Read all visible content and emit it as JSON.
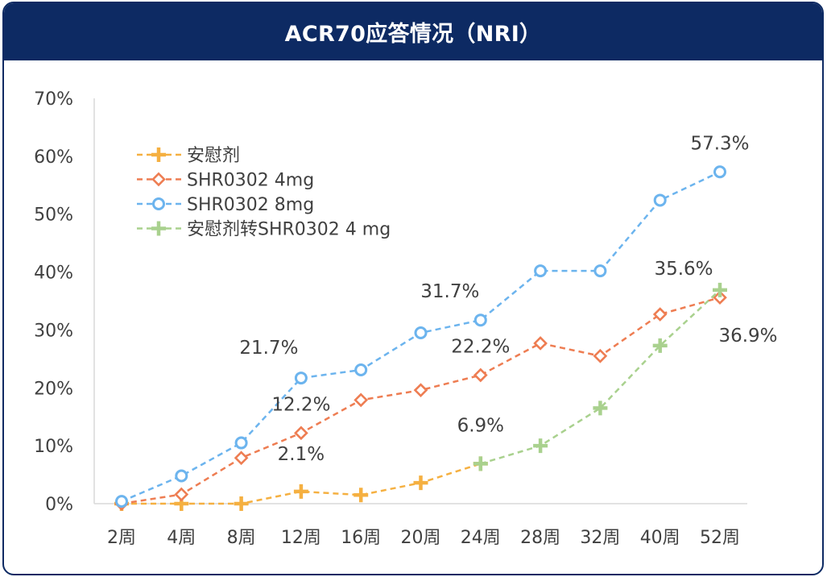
{
  "header": {
    "title": "ACR70应答情况（NRI）"
  },
  "chart_data": {
    "type": "line",
    "title": "ACR70应答情况（NRI）",
    "categories": [
      "2周",
      "4周",
      "8周",
      "12周",
      "16周",
      "20周",
      "24周",
      "28周",
      "32周",
      "40周",
      "52周"
    ],
    "ylim": [
      0,
      70
    ],
    "yticks": [
      0,
      10,
      20,
      30,
      40,
      50,
      60,
      70
    ],
    "ytick_labels": [
      "0%",
      "10%",
      "20%",
      "30%",
      "40%",
      "50%",
      "60%",
      "70%"
    ],
    "grid": false,
    "legend": "top-left",
    "series": [
      {
        "name": "安慰剂",
        "color": "#f5b041",
        "marker": "plus",
        "values": [
          0,
          0,
          0,
          2.1,
          1.5,
          3.6,
          6.9,
          null,
          null,
          null,
          null
        ]
      },
      {
        "name": "SHR0302 4mg",
        "color": "#ee7d52",
        "marker": "diamond",
        "values": [
          0,
          1.6,
          7.9,
          12.2,
          17.9,
          19.6,
          22.2,
          27.7,
          25.5,
          32.7,
          35.6
        ]
      },
      {
        "name": "SHR0302 8mg",
        "color": "#6cb4ee",
        "marker": "circle",
        "values": [
          0.4,
          4.8,
          10.5,
          21.7,
          23.1,
          29.5,
          31.7,
          40.2,
          40.2,
          52.4,
          57.3
        ]
      },
      {
        "name": "安慰剂转SHR0302 4 mg",
        "color": "#a9d18e",
        "marker": "plus",
        "values": [
          null,
          null,
          null,
          null,
          null,
          null,
          6.9,
          10.0,
          16.5,
          27.3,
          36.9
        ]
      }
    ],
    "annotations": [
      {
        "text": "57.3%",
        "series": 2,
        "index": 10
      },
      {
        "text": "21.7%",
        "series": 2,
        "index": 3
      },
      {
        "text": "31.7%",
        "series": 2,
        "index": 6
      },
      {
        "text": "12.2%",
        "series": 1,
        "index": 3
      },
      {
        "text": "22.2%",
        "series": 1,
        "index": 6
      },
      {
        "text": "35.6%",
        "series": 1,
        "index": 10
      },
      {
        "text": "2.1%",
        "series": 0,
        "index": 3
      },
      {
        "text": "6.9%",
        "series": 0,
        "index": 6
      },
      {
        "text": "36.9%",
        "series": 3,
        "index": 10
      }
    ]
  }
}
